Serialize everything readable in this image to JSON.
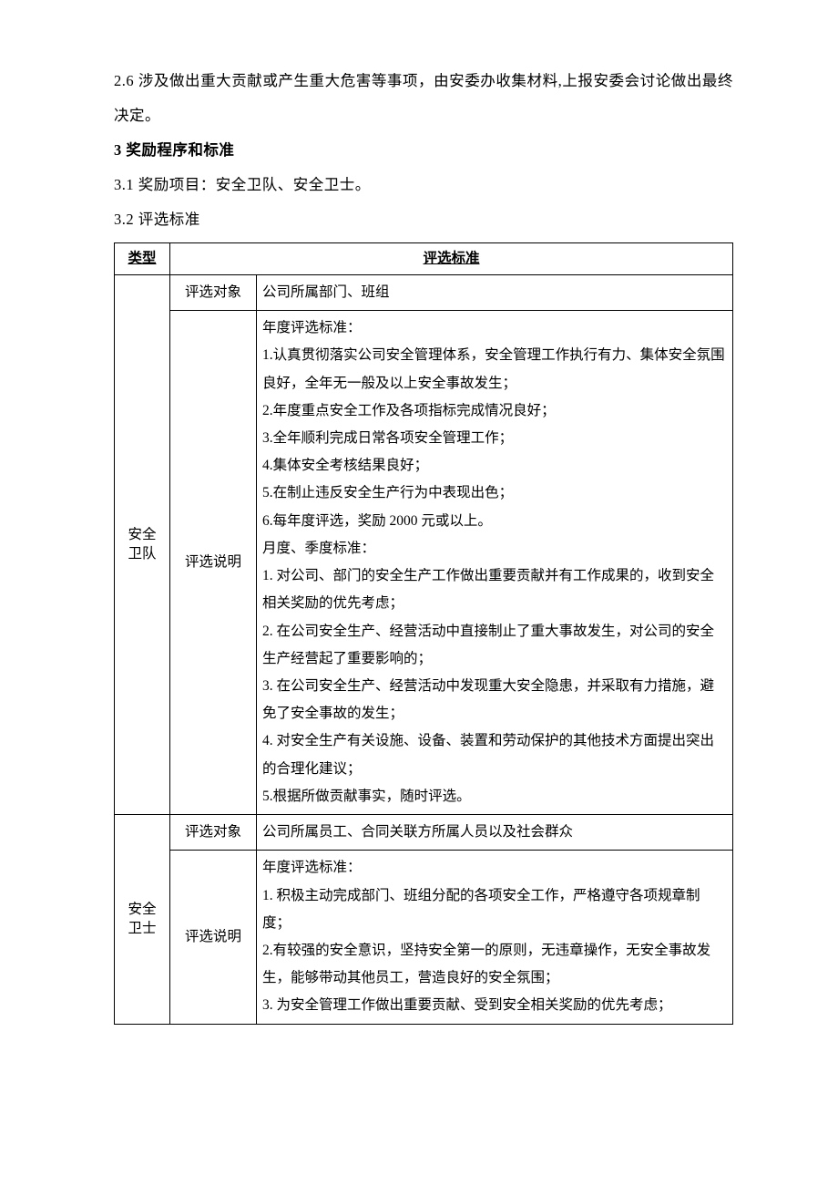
{
  "intro": {
    "p26": "2.6 涉及做出重大贡献或产生重大危害等事项，由安委办收集材料,上报安委会讨论做出最终决定。",
    "h3": "3 奖励程序和标准",
    "p31": "3.1 奖励项目：安全卫队、安全卫士。",
    "p32": "3.2 评选标准"
  },
  "table": {
    "headers": {
      "type": "类型",
      "criteria": "评选标准"
    },
    "labels": {
      "target": "评选对象",
      "desc": "评选说明"
    },
    "groups": [
      {
        "name": "安全\n卫队",
        "target": "公司所属部门、班组",
        "desc": "年度评选标准：\n1.认真贯彻落实公司安全管理体系，安全管理工作执行有力、集体安全氛围良好，全年无一般及以上安全事故发生；\n2.年度重点安全工作及各项指标完成情况良好；\n3.全年顺利完成日常各项安全管理工作；\n4.集体安全考核结果良好；\n5.在制止违反安全生产行为中表现出色；\n6.每年度评选，奖励 2000 元或以上。\n月度、季度标准：\n1. 对公司、部门的安全生产工作做出重要贡献并有工作成果的，收到安全相关奖励的优先考虑；\n2. 在公司安全生产、经营活动中直接制止了重大事故发生，对公司的安全生产经营起了重要影响的；\n3. 在公司安全生产、经营活动中发现重大安全隐患，并采取有力措施，避免了安全事故的发生；\n4. 对安全生产有关设施、设备、装置和劳动保护的其他技术方面提出突出的合理化建议；\n5.根据所做贡献事实，随时评选。"
      },
      {
        "name": "安全\n卫士",
        "target": "公司所属员工、合同关联方所属人员以及社会群众",
        "desc": "年度评选标准：\n1. 积极主动完成部门、班组分配的各项安全工作，严格遵守各项规章制度；\n2.有较强的安全意识，坚持安全第一的原则，无违章操作，无安全事故发生，能够带动其他员工，营造良好的安全氛围；\n3. 为安全管理工作做出重要贡献、受到安全相关奖励的优先考虑；\n"
      }
    ]
  },
  "style": {
    "background": "#ffffff",
    "text_color": "#000000",
    "border_color": "#000000",
    "body_fontsize": 16.5,
    "table_fontsize": 15.5,
    "col_widths": {
      "type": 52,
      "label": 86
    }
  }
}
